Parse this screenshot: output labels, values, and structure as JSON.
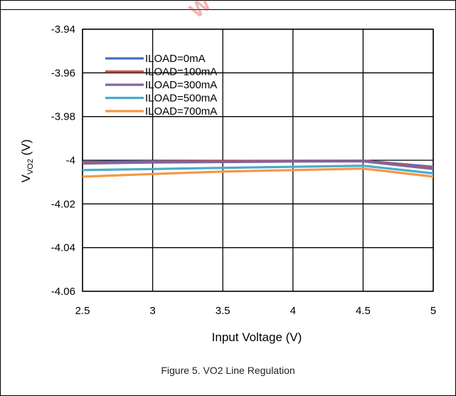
{
  "caption": "Figure 5. VO2 Line Regulation",
  "watermark": "W",
  "chart_data": {
    "type": "line",
    "xlabel": "Input Voltage (V)",
    "ylabel_main": "V",
    "ylabel_sub": "VO2",
    "ylabel_unit": " (V)",
    "xlim": [
      2.5,
      5
    ],
    "ylim": [
      -4.06,
      -3.94
    ],
    "xticks": [
      2.5,
      3,
      3.5,
      4,
      4.5,
      5
    ],
    "yticks": [
      -3.94,
      -3.96,
      -3.98,
      -4,
      -4.02,
      -4.04,
      -4.06
    ],
    "grid": true,
    "legend_position": "top-left",
    "x": [
      2.5,
      3.0,
      3.5,
      4.0,
      4.5,
      5.0
    ],
    "series": [
      {
        "name": "ILOAD=0mA",
        "color": "#4472c4",
        "values": [
          -4.0008,
          -4.0005,
          -4.0004,
          -4.0003,
          -4.0002,
          -4.003
        ]
      },
      {
        "name": "ILOAD=100mA",
        "color": "#c0504d",
        "values": [
          -4.001,
          -4.0007,
          -4.0005,
          -4.0004,
          -4.0003,
          -4.0035
        ]
      },
      {
        "name": "ILOAD=300mA",
        "color": "#8064a2",
        "values": [
          -4.0015,
          -4.001,
          -4.0008,
          -4.0006,
          -4.0005,
          -4.004
        ]
      },
      {
        "name": "ILOAD=500mA",
        "color": "#4bacc6",
        "values": [
          -4.0045,
          -4.004,
          -4.0035,
          -4.003,
          -4.0025,
          -4.006
        ]
      },
      {
        "name": "ILOAD=700mA",
        "color": "#f79646",
        "values": [
          -4.0075,
          -4.0063,
          -4.0052,
          -4.0045,
          -4.0038,
          -4.0075
        ]
      }
    ]
  }
}
